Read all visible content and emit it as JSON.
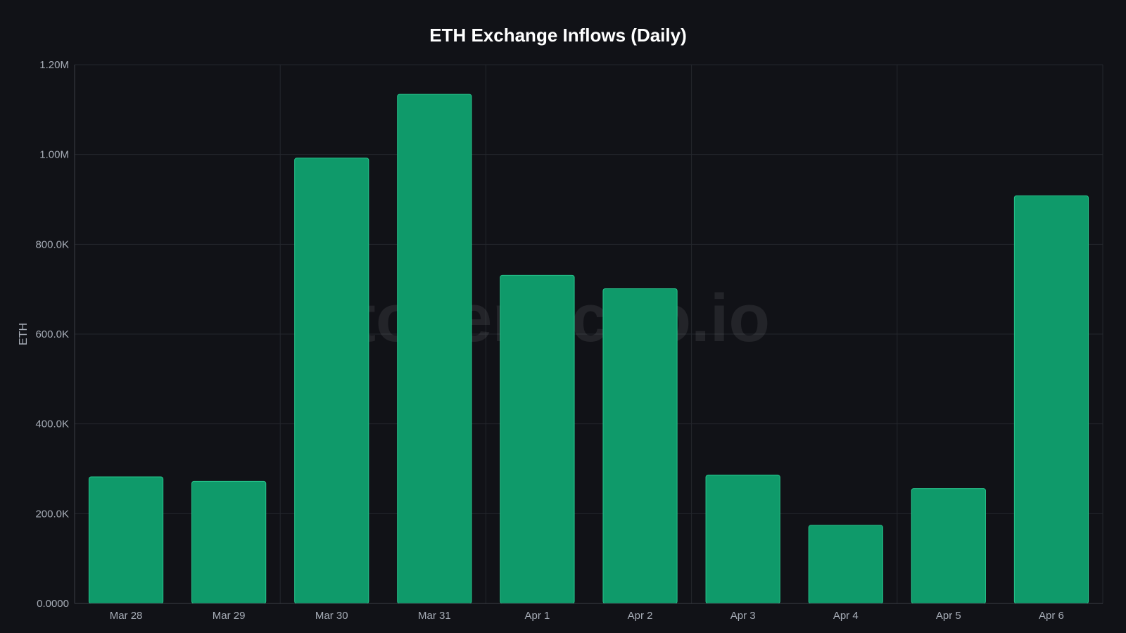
{
  "watermark": "tokenecho.io",
  "colors": {
    "background": "#111217",
    "bar": "#0f9a6a",
    "bar_edge": "#27c58d",
    "grid": "#24272d",
    "axis": "#3a3e45",
    "text": "#a7adb7",
    "title": "#ffffff"
  },
  "chart_data": {
    "type": "bar",
    "title": "ETH Exchange Inflows (Daily)",
    "xlabel": "",
    "ylabel": "ETH",
    "categories": [
      "Mar 28",
      "Mar 29",
      "Mar 30",
      "Mar 31",
      "Apr 1",
      "Apr 2",
      "Apr 3",
      "Apr 4",
      "Apr 5",
      "Apr 6"
    ],
    "values": [
      282000,
      272000,
      992000,
      1134000,
      731000,
      701000,
      286000,
      174000,
      256000,
      908000
    ],
    "ylim": [
      0,
      1200000
    ],
    "yticks": [
      0,
      200000,
      400000,
      600000,
      800000,
      1000000,
      1200000
    ],
    "ytick_labels": [
      "0.0000",
      "200.0K",
      "400.0K",
      "600.0K",
      "800.0K",
      "1.00M",
      "1.20M"
    ],
    "grid": true,
    "legend": "none"
  }
}
